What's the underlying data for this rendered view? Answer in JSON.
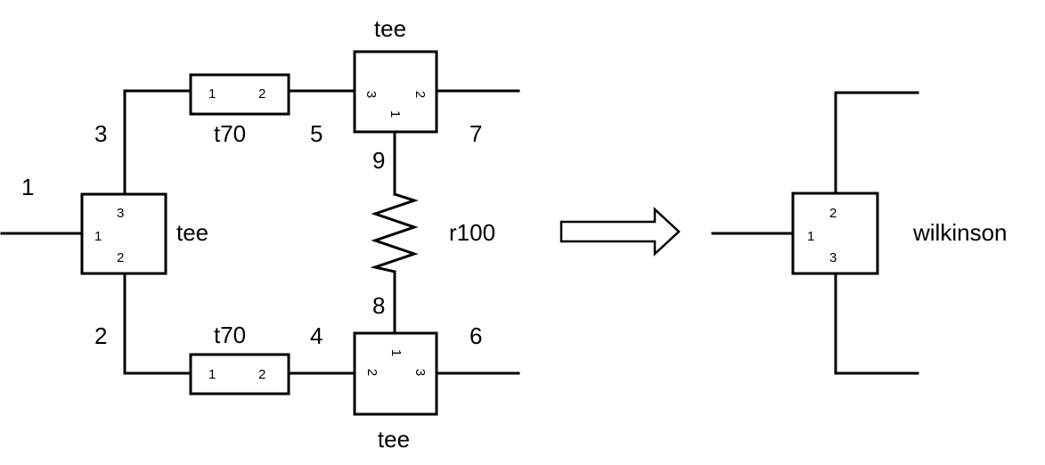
{
  "nets": {
    "n1": "1",
    "n2": "2",
    "n3": "3",
    "n4": "4",
    "n5": "5",
    "n6": "6",
    "n7": "7",
    "n8": "8",
    "n9": "9"
  },
  "components": {
    "tee_left": {
      "label": "tee",
      "p1": "1",
      "p2": "2",
      "p3": "3"
    },
    "tee_top": {
      "label": "tee",
      "p1": "1",
      "p2": "2",
      "p3": "3"
    },
    "tee_bottom": {
      "label": "tee",
      "p1": "1",
      "p2": "2",
      "p3": "3"
    },
    "t70_top": {
      "label": "t70",
      "p1": "1",
      "p2": "2"
    },
    "t70_bottom": {
      "label": "t70",
      "p1": "1",
      "p2": "2"
    },
    "resistor": {
      "label": "r100"
    },
    "wilkinson": {
      "label": "wilkinson",
      "p1": "1",
      "p2": "2",
      "p3": "3"
    }
  },
  "arrow": {
    "icon": "right-arrow-icon"
  }
}
